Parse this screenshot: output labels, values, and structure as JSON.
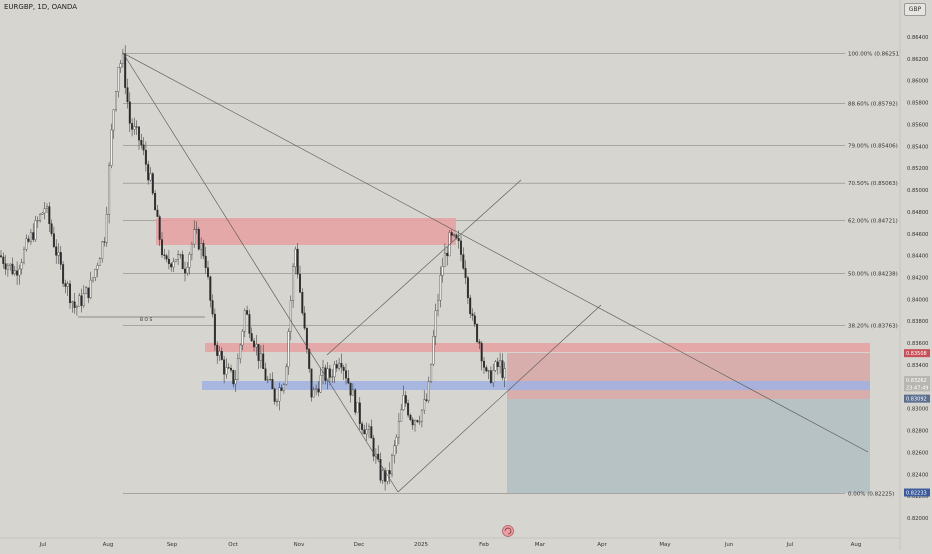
{
  "header": {
    "symbol_label": "EURGBP, 1D, OANDA",
    "currency": "GBP"
  },
  "chart_data": {
    "type": "candlestick",
    "symbol": "EURGBP",
    "timeframe": "1D",
    "source": "OANDA",
    "ylim": [
      0.819,
      0.8662
    ],
    "y_ticks": [
      "0.86400",
      "0.86200",
      "0.86000",
      "0.85800",
      "0.85600",
      "0.85400",
      "0.85200",
      "0.85000",
      "0.84800",
      "0.84600",
      "0.84400",
      "0.84200",
      "0.84000",
      "0.83800",
      "0.83600",
      "0.83400",
      "0.83200",
      "0.83000",
      "0.82800",
      "0.82600",
      "0.82400",
      "0.82200",
      "0.82000"
    ],
    "x_ticks": [
      "Jul",
      "Aug",
      "Sep",
      "Oct",
      "Nov",
      "Dec",
      "2025",
      "Feb",
      "Mar",
      "Apr",
      "May",
      "Jun",
      "Jul",
      "Aug"
    ],
    "fib_levels": [
      {
        "label": "100.00% (0.86251)",
        "price": 0.86251
      },
      {
        "label": "88.60% (0.85792)",
        "price": 0.85792
      },
      {
        "label": "79.00% (0.85406)",
        "price": 0.85406
      },
      {
        "label": "70.50% (0.85063)",
        "price": 0.85063
      },
      {
        "label": "62.00% (0.84721)",
        "price": 0.84721
      },
      {
        "label": "50.00% (0.84238)",
        "price": 0.84238
      },
      {
        "label": "38.20% (0.83763)",
        "price": 0.83763
      },
      {
        "label": "0.00% (0.82225)",
        "price": 0.82225
      }
    ],
    "bos_label": "B O S",
    "price_tags": [
      {
        "label": "0.83508",
        "price": 0.83508,
        "color": "#c8505a"
      },
      {
        "label": "0.83262",
        "price": 0.83262,
        "color": "#b7b6b0"
      },
      {
        "label": "23:47:49",
        "price": 0.83195,
        "color": "#b7b6b0"
      },
      {
        "label": "0.83092",
        "price": 0.83092,
        "color": "#5b6f8e"
      },
      {
        "label": "0.82233",
        "price": 0.82233,
        "color": "#3d5a9a"
      }
    ]
  },
  "colors": {
    "background": "#d6d5cf",
    "candle": "#2b2b2b",
    "supply_zone": "#e8a0a2",
    "demand_zone": "#9fb1e3",
    "stop_zone": "#d99a9b",
    "target_zone": "#9fb3bd"
  },
  "footer": {
    "replay_icon": "replay-icon"
  }
}
